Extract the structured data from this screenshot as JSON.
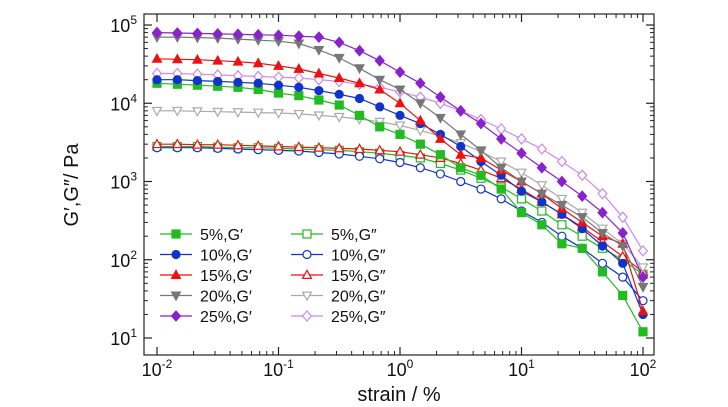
{
  "chart_data": {
    "type": "line",
    "x_scale": "log",
    "y_scale": "log",
    "xlim": [
      0.01,
      100
    ],
    "ylim": [
      10,
      100000
    ],
    "xlabel": "strain / %",
    "ylabel": "G′,G″/ Pa",
    "x_tick_labels": [
      {
        "value": 0.01,
        "base": "10",
        "exp": "-2"
      },
      {
        "value": 0.1,
        "base": "10",
        "exp": "-1"
      },
      {
        "value": 1,
        "base": "10",
        "exp": "0"
      },
      {
        "value": 10,
        "base": "10",
        "exp": "1"
      },
      {
        "value": 100,
        "base": "10",
        "exp": "2"
      }
    ],
    "y_tick_labels": [
      {
        "value": 10,
        "base": "10",
        "exp": "1"
      },
      {
        "value": 100,
        "base": "10",
        "exp": "2"
      },
      {
        "value": 1000,
        "base": "10",
        "exp": "3"
      },
      {
        "value": 10000,
        "base": "10",
        "exp": "4"
      },
      {
        "value": 100000,
        "base": "10",
        "exp": "5"
      }
    ],
    "grid": false,
    "legend_position": "bottom-left",
    "series": [
      {
        "name": "5%,G′",
        "color": "#22bb22",
        "marker": "square",
        "filled": true,
        "x": [
          0.01,
          0.0147,
          0.0215,
          0.0316,
          0.0464,
          0.0681,
          0.1,
          0.147,
          0.215,
          0.316,
          0.464,
          0.681,
          1,
          1.47,
          2.15,
          3.16,
          4.64,
          6.81,
          10,
          14.7,
          21.5,
          31.6,
          46.4,
          68.1,
          100
        ],
        "y": [
          18000,
          17500,
          17000,
          16500,
          16000,
          15000,
          13500,
          12500,
          11000,
          9500,
          7000,
          5000,
          4000,
          3000,
          2200,
          1500,
          1200,
          800,
          400,
          280,
          160,
          140,
          70,
          35,
          12
        ]
      },
      {
        "name": "10%,G′",
        "color": "#1133cc",
        "marker": "circle",
        "filled": true,
        "x": [
          0.01,
          0.0147,
          0.0215,
          0.0316,
          0.0464,
          0.0681,
          0.1,
          0.147,
          0.215,
          0.316,
          0.464,
          0.681,
          1,
          1.47,
          2.15,
          3.16,
          4.64,
          6.81,
          10,
          14.7,
          21.5,
          31.6,
          46.4,
          68.1,
          100
        ],
        "y": [
          20000,
          20000,
          19500,
          19000,
          18500,
          18000,
          17000,
          16000,
          14500,
          13000,
          11500,
          9000,
          7000,
          5500,
          4000,
          2800,
          1800,
          1200,
          750,
          550,
          380,
          250,
          150,
          90,
          20
        ]
      },
      {
        "name": "15%,G′",
        "color": "#ee1111",
        "marker": "triangle",
        "filled": true,
        "x": [
          0.01,
          0.0147,
          0.0215,
          0.0316,
          0.0464,
          0.0681,
          0.1,
          0.147,
          0.215,
          0.316,
          0.464,
          0.681,
          1,
          1.47,
          2.15,
          3.16,
          4.64,
          6.81,
          10,
          14.7,
          21.5,
          31.6,
          46.4,
          68.1,
          100
        ],
        "y": [
          37000,
          36500,
          36000,
          35000,
          34000,
          32500,
          30000,
          27500,
          24000,
          21000,
          18000,
          15000,
          10000,
          6000,
          3500,
          2200,
          2000,
          1400,
          1000,
          700,
          450,
          300,
          200,
          160,
          22
        ]
      },
      {
        "name": "20%,G′",
        "color": "#777777",
        "marker": "triangle-down",
        "filled": true,
        "x": [
          0.01,
          0.0147,
          0.0215,
          0.0316,
          0.0464,
          0.0681,
          0.1,
          0.147,
          0.215,
          0.316,
          0.464,
          0.681,
          1,
          1.47,
          2.15,
          3.16,
          4.64,
          6.81,
          10,
          14.7,
          21.5,
          31.6,
          46.4,
          68.1,
          100
        ],
        "y": [
          70000,
          70000,
          69000,
          68000,
          66000,
          64000,
          62000,
          58000,
          48000,
          38000,
          28000,
          20000,
          15000,
          10000,
          6500,
          4000,
          2500,
          1500,
          1000,
          700,
          500,
          350,
          220,
          150,
          45
        ]
      },
      {
        "name": "25%,G′",
        "color": "#8822cc",
        "marker": "diamond",
        "filled": true,
        "x": [
          0.01,
          0.0147,
          0.0215,
          0.0316,
          0.0464,
          0.0681,
          0.1,
          0.147,
          0.215,
          0.316,
          0.464,
          0.681,
          1,
          1.47,
          2.15,
          3.16,
          4.64,
          6.81,
          10,
          14.7,
          21.5,
          31.6,
          46.4,
          68.1,
          100
        ],
        "y": [
          80000,
          79000,
          78000,
          77000,
          76000,
          75000,
          74000,
          72000,
          70000,
          60000,
          47000,
          35000,
          25000,
          18000,
          12000,
          8000,
          5500,
          3500,
          2300,
          1500,
          1000,
          650,
          400,
          220,
          60
        ]
      },
      {
        "name": "5%,G″",
        "color": "#22bb22",
        "marker": "square",
        "filled": false,
        "x": [
          0.01,
          0.0147,
          0.0215,
          0.0316,
          0.0464,
          0.0681,
          0.1,
          0.147,
          0.215,
          0.316,
          0.464,
          0.681,
          1,
          1.47,
          2.15,
          3.16,
          4.64,
          6.81,
          10,
          14.7,
          21.5,
          31.6,
          46.4,
          68.1,
          100
        ],
        "y": [
          2800,
          2800,
          2800,
          2750,
          2700,
          2700,
          2650,
          2600,
          2550,
          2500,
          2400,
          2300,
          2150,
          2000,
          1700,
          1400,
          1100,
          850,
          600,
          420,
          280,
          200,
          140,
          100,
          65
        ]
      },
      {
        "name": "10%,G″",
        "color": "#1133cc",
        "marker": "circle",
        "filled": false,
        "x": [
          0.01,
          0.0147,
          0.0215,
          0.0316,
          0.0464,
          0.0681,
          0.1,
          0.147,
          0.215,
          0.316,
          0.464,
          0.681,
          1,
          1.47,
          2.15,
          3.16,
          4.64,
          6.81,
          10,
          14.7,
          21.5,
          31.6,
          46.4,
          68.1,
          100
        ],
        "y": [
          2700,
          2700,
          2700,
          2650,
          2600,
          2550,
          2500,
          2450,
          2350,
          2250,
          2100,
          1950,
          1750,
          1500,
          1250,
          1000,
          800,
          600,
          420,
          300,
          200,
          140,
          90,
          60,
          30
        ]
      },
      {
        "name": "15%,G″",
        "color": "#ee1111",
        "marker": "triangle",
        "filled": false,
        "x": [
          0.01,
          0.0147,
          0.0215,
          0.0316,
          0.0464,
          0.0681,
          0.1,
          0.147,
          0.215,
          0.316,
          0.464,
          0.681,
          1,
          1.47,
          2.15,
          3.16,
          4.64,
          6.81,
          10,
          14.7,
          21.5,
          31.6,
          46.4,
          68.1,
          100
        ],
        "y": [
          3000,
          3000,
          2950,
          2950,
          2900,
          2850,
          2800,
          2750,
          2700,
          2650,
          2600,
          2500,
          2400,
          2200,
          2000,
          1700,
          1400,
          1100,
          800,
          550,
          380,
          260,
          170,
          110,
          70
        ]
      },
      {
        "name": "20%,G″",
        "color": "#aaaaaa",
        "marker": "triangle-down",
        "filled": false,
        "x": [
          0.01,
          0.0147,
          0.0215,
          0.0316,
          0.0464,
          0.0681,
          0.1,
          0.147,
          0.215,
          0.316,
          0.464,
          0.681,
          1,
          1.47,
          2.15,
          3.16,
          4.64,
          6.81,
          10,
          14.7,
          21.5,
          31.6,
          46.4,
          68.1,
          100
        ],
        "y": [
          8000,
          8000,
          7900,
          7800,
          7700,
          7600,
          7500,
          7300,
          7000,
          6700,
          6300,
          5800,
          5200,
          4500,
          3800,
          3100,
          2400,
          1800,
          1300,
          900,
          600,
          400,
          250,
          160,
          80
        ]
      },
      {
        "name": "25%,G″",
        "color": "#cc88ee",
        "marker": "diamond",
        "filled": false,
        "x": [
          0.01,
          0.0147,
          0.0215,
          0.0316,
          0.0464,
          0.0681,
          0.1,
          0.147,
          0.215,
          0.316,
          0.464,
          0.681,
          1,
          1.47,
          2.15,
          3.16,
          4.64,
          6.81,
          10,
          14.7,
          21.5,
          31.6,
          46.4,
          68.1,
          100
        ],
        "y": [
          24000,
          24000,
          23500,
          23000,
          22500,
          22000,
          21500,
          21000,
          20000,
          19000,
          17500,
          16000,
          14000,
          12000,
          10000,
          8000,
          6200,
          4700,
          3500,
          2600,
          1800,
          1200,
          700,
          350,
          130
        ]
      }
    ]
  }
}
